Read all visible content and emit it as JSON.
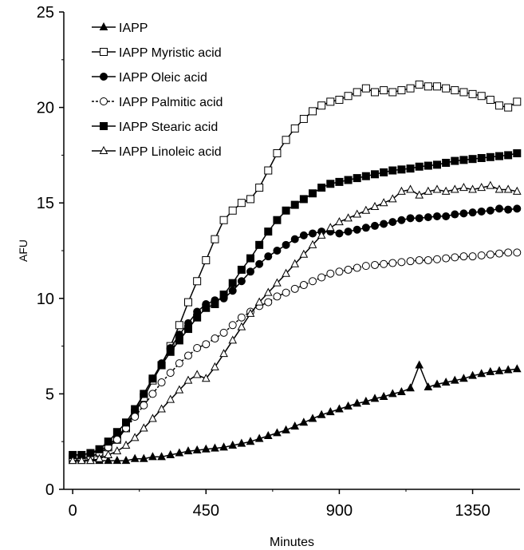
{
  "chart_data": {
    "type": "line",
    "title": "",
    "xlabel": "Minutes",
    "ylabel": "AFU",
    "xlim": [
      -30,
      1510
    ],
    "ylim": [
      0,
      25
    ],
    "x_ticks": [
      0,
      450,
      900,
      1350
    ],
    "y_ticks": [
      0,
      5,
      10,
      15,
      20,
      25
    ],
    "grid": false,
    "legend_position": "top-left",
    "x": [
      0,
      30,
      60,
      90,
      120,
      150,
      180,
      210,
      240,
      270,
      300,
      330,
      360,
      390,
      420,
      450,
      480,
      510,
      540,
      570,
      600,
      630,
      660,
      690,
      720,
      750,
      780,
      810,
      840,
      870,
      900,
      930,
      960,
      990,
      1020,
      1050,
      1080,
      1110,
      1140,
      1170,
      1200,
      1230,
      1260,
      1290,
      1320,
      1350,
      1380,
      1410,
      1440,
      1470,
      1500
    ],
    "series": [
      {
        "name": "IAPP",
        "marker": "filled-triangle",
        "color": "#000000",
        "values": [
          1.5,
          1.5,
          1.5,
          1.5,
          1.5,
          1.5,
          1.5,
          1.6,
          1.6,
          1.7,
          1.7,
          1.8,
          1.9,
          2.0,
          2.05,
          2.1,
          2.15,
          2.2,
          2.3,
          2.4,
          2.5,
          2.65,
          2.8,
          2.95,
          3.1,
          3.3,
          3.5,
          3.7,
          3.9,
          4.05,
          4.2,
          4.35,
          4.5,
          4.6,
          4.75,
          4.85,
          5.0,
          5.1,
          5.3,
          6.5,
          5.35,
          5.5,
          5.6,
          5.7,
          5.8,
          5.95,
          6.05,
          6.15,
          6.2,
          6.25,
          6.3
        ]
      },
      {
        "name": "IAPP Myristic acid",
        "marker": "open-square",
        "color": "#000000",
        "values": [
          1.6,
          1.6,
          1.7,
          1.9,
          2.2,
          2.6,
          3.2,
          4.0,
          4.8,
          5.7,
          6.5,
          7.5,
          8.6,
          9.8,
          10.9,
          12.0,
          13.1,
          14.1,
          14.6,
          15.0,
          15.2,
          15.8,
          16.7,
          17.6,
          18.3,
          18.9,
          19.4,
          19.8,
          20.1,
          20.3,
          20.4,
          20.6,
          20.8,
          21.0,
          20.8,
          20.9,
          20.8,
          20.9,
          21.0,
          21.2,
          21.1,
          21.1,
          21.0,
          20.9,
          20.8,
          20.7,
          20.6,
          20.4,
          20.1,
          20.0,
          20.3
        ]
      },
      {
        "name": "IAPP Oleic acid",
        "marker": "filled-circle",
        "color": "#000000",
        "values": [
          1.8,
          1.8,
          1.9,
          2.0,
          2.3,
          2.7,
          3.3,
          4.1,
          5.0,
          5.8,
          6.6,
          7.4,
          8.1,
          8.7,
          9.3,
          9.7,
          9.9,
          10.0,
          10.4,
          10.9,
          11.4,
          11.8,
          12.2,
          12.5,
          12.8,
          13.1,
          13.3,
          13.4,
          13.5,
          13.5,
          13.4,
          13.5,
          13.6,
          13.7,
          13.8,
          13.9,
          14.0,
          14.1,
          14.2,
          14.2,
          14.25,
          14.3,
          14.3,
          14.4,
          14.45,
          14.5,
          14.55,
          14.6,
          14.7,
          14.65,
          14.7
        ]
      },
      {
        "name": "IAPP Palmitic acid",
        "marker": "open-circle",
        "color": "#000000",
        "values": [
          1.6,
          1.6,
          1.7,
          1.9,
          2.2,
          2.6,
          3.2,
          3.8,
          4.4,
          5.0,
          5.6,
          6.1,
          6.6,
          7.0,
          7.4,
          7.6,
          7.9,
          8.2,
          8.6,
          9.0,
          9.3,
          9.6,
          9.8,
          10.1,
          10.3,
          10.5,
          10.7,
          10.9,
          11.1,
          11.3,
          11.4,
          11.5,
          11.6,
          11.7,
          11.75,
          11.8,
          11.85,
          11.9,
          11.95,
          12.0,
          12.0,
          12.05,
          12.1,
          12.15,
          12.2,
          12.2,
          12.25,
          12.3,
          12.35,
          12.4,
          12.4
        ]
      },
      {
        "name": "IAPP Stearic acid",
        "marker": "filled-square",
        "color": "#000000",
        "values": [
          1.8,
          1.8,
          1.9,
          2.1,
          2.5,
          3.0,
          3.5,
          4.2,
          5.0,
          5.8,
          6.5,
          7.2,
          7.8,
          8.4,
          9.0,
          9.5,
          9.7,
          10.2,
          10.8,
          11.5,
          12.1,
          12.8,
          13.5,
          14.1,
          14.6,
          14.9,
          15.2,
          15.5,
          15.8,
          16.0,
          16.1,
          16.2,
          16.3,
          16.4,
          16.5,
          16.6,
          16.7,
          16.75,
          16.8,
          16.9,
          16.95,
          17.0,
          17.1,
          17.2,
          17.25,
          17.3,
          17.35,
          17.4,
          17.45,
          17.5,
          17.6
        ]
      },
      {
        "name": "IAPP Linoleic acid",
        "marker": "open-triangle",
        "color": "#000000",
        "values": [
          1.5,
          1.5,
          1.5,
          1.6,
          1.8,
          2.0,
          2.3,
          2.7,
          3.2,
          3.7,
          4.2,
          4.7,
          5.2,
          5.7,
          6.0,
          5.8,
          6.4,
          7.1,
          7.8,
          8.5,
          9.2,
          9.8,
          10.3,
          10.8,
          11.3,
          11.8,
          12.3,
          12.8,
          13.3,
          13.7,
          14.0,
          14.2,
          14.4,
          14.6,
          14.8,
          15.0,
          15.2,
          15.6,
          15.7,
          15.4,
          15.6,
          15.7,
          15.6,
          15.7,
          15.8,
          15.7,
          15.8,
          15.9,
          15.7,
          15.7,
          15.6
        ]
      }
    ]
  }
}
